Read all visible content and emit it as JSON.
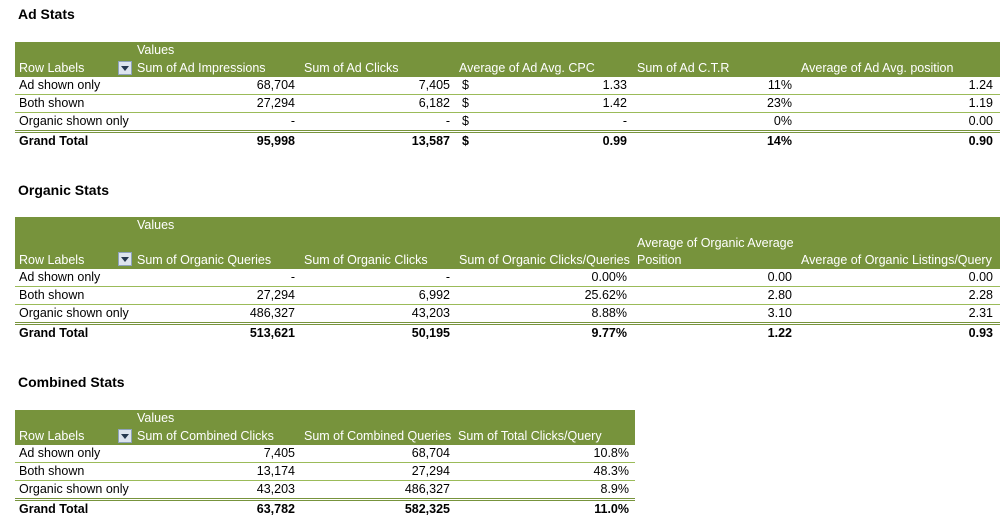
{
  "ad": {
    "title": "Ad Stats",
    "values_label": "Values",
    "row_labels": "Row Labels",
    "headers": [
      "Sum of Ad Impressions",
      "Sum of Ad Clicks",
      "Average of Ad Avg. CPC",
      "Sum of Ad C.T.R",
      "Average of Ad Avg. position"
    ],
    "rows": [
      {
        "label": "Ad shown only",
        "c1": "68,704",
        "c2": "7,405",
        "cur": "$",
        "c3": "1.33",
        "c4": "11%",
        "c5": "1.24"
      },
      {
        "label": "Both shown",
        "c1": "27,294",
        "c2": "6,182",
        "cur": "$",
        "c3": "1.42",
        "c4": "23%",
        "c5": "1.19"
      },
      {
        "label": "Organic shown only",
        "c1": "-",
        "c2": "-",
        "cur": "$",
        "c3": "-",
        "c4": "0%",
        "c5": "0.00"
      }
    ],
    "total": {
      "label": "Grand Total",
      "c1": "95,998",
      "c2": "13,587",
      "cur": "$",
      "c3": "0.99",
      "c4": "14%",
      "c5": "0.90"
    }
  },
  "organic": {
    "title": "Organic Stats",
    "values_label": "Values",
    "row_labels": "Row Labels",
    "headers": [
      "Sum of Organic Queries",
      "Sum of Organic Clicks",
      "Sum of Organic Clicks/Queries",
      "Average of Organic Average",
      "Position",
      "Average of Organic Listings/Query"
    ],
    "rows": [
      {
        "label": "Ad shown only",
        "c1": "-",
        "c2": "-",
        "c3": "0.00%",
        "c4": "0.00",
        "c5": "0.00"
      },
      {
        "label": "Both shown",
        "c1": "27,294",
        "c2": "6,992",
        "c3": "25.62%",
        "c4": "2.80",
        "c5": "2.28"
      },
      {
        "label": "Organic shown only",
        "c1": "486,327",
        "c2": "43,203",
        "c3": "8.88%",
        "c4": "3.10",
        "c5": "2.31"
      }
    ],
    "total": {
      "label": "Grand Total",
      "c1": "513,621",
      "c2": "50,195",
      "c3": "9.77%",
      "c4": "1.22",
      "c5": "0.93"
    }
  },
  "combined": {
    "title": "Combined Stats",
    "values_label": "Values",
    "row_labels": "Row Labels",
    "headers": [
      "Sum of Combined Clicks",
      "Sum of Combined Queries",
      "Sum of Total Clicks/Query"
    ],
    "rows": [
      {
        "label": "Ad shown only",
        "c1": "7,405",
        "c2": "68,704",
        "c3": "10.8%"
      },
      {
        "label": "Both shown",
        "c1": "13,174",
        "c2": "27,294",
        "c3": "48.3%"
      },
      {
        "label": "Organic shown only",
        "c1": "43,203",
        "c2": "486,327",
        "c3": "8.9%"
      }
    ],
    "total": {
      "label": "Grand Total",
      "c1": "63,782",
      "c2": "582,325",
      "c3": "11.0%"
    }
  }
}
